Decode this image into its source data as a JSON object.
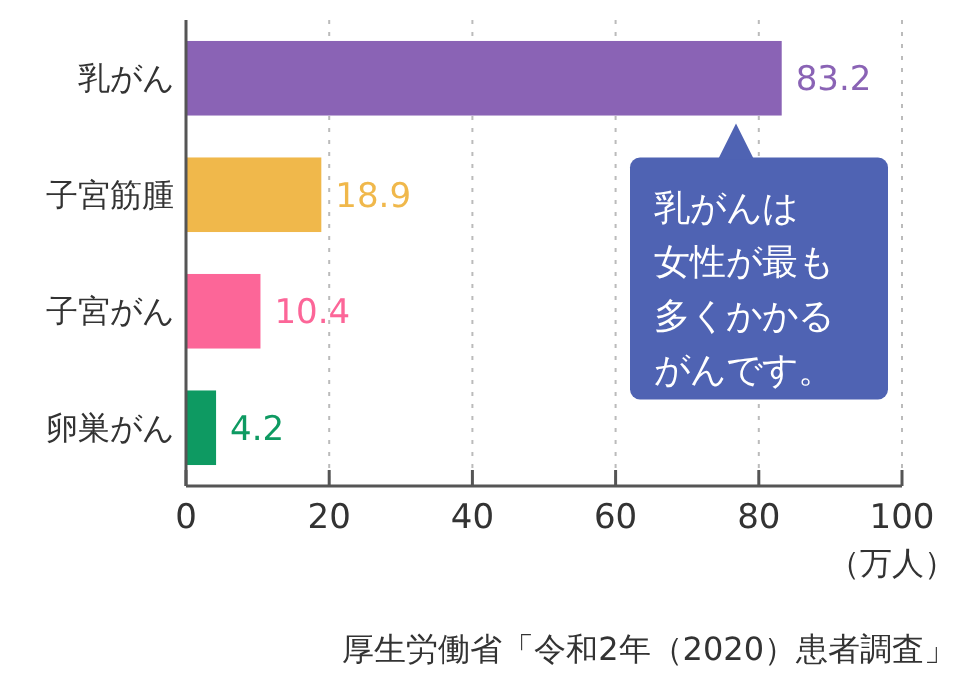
{
  "chart_data": {
    "type": "bar",
    "orientation": "horizontal",
    "categories": [
      "乳がん",
      "子宮筋腫",
      "子宮がん",
      "卵巣がん"
    ],
    "values": [
      83.2,
      18.9,
      10.4,
      4.2
    ],
    "colors": [
      "#8a63b5",
      "#f0b84b",
      "#fc6698",
      "#0e9a62"
    ],
    "xlim": [
      0,
      100
    ],
    "xticks": [
      0,
      20,
      40,
      60,
      80,
      100
    ],
    "xlabel": "（万人）",
    "grid": "x",
    "data_labels": true,
    "annotations": [
      "乳がんは",
      "女性が最も",
      "多くかかる",
      "がんです。",
      "厚生労働省「令和2年（2020）患者調査」"
    ]
  }
}
